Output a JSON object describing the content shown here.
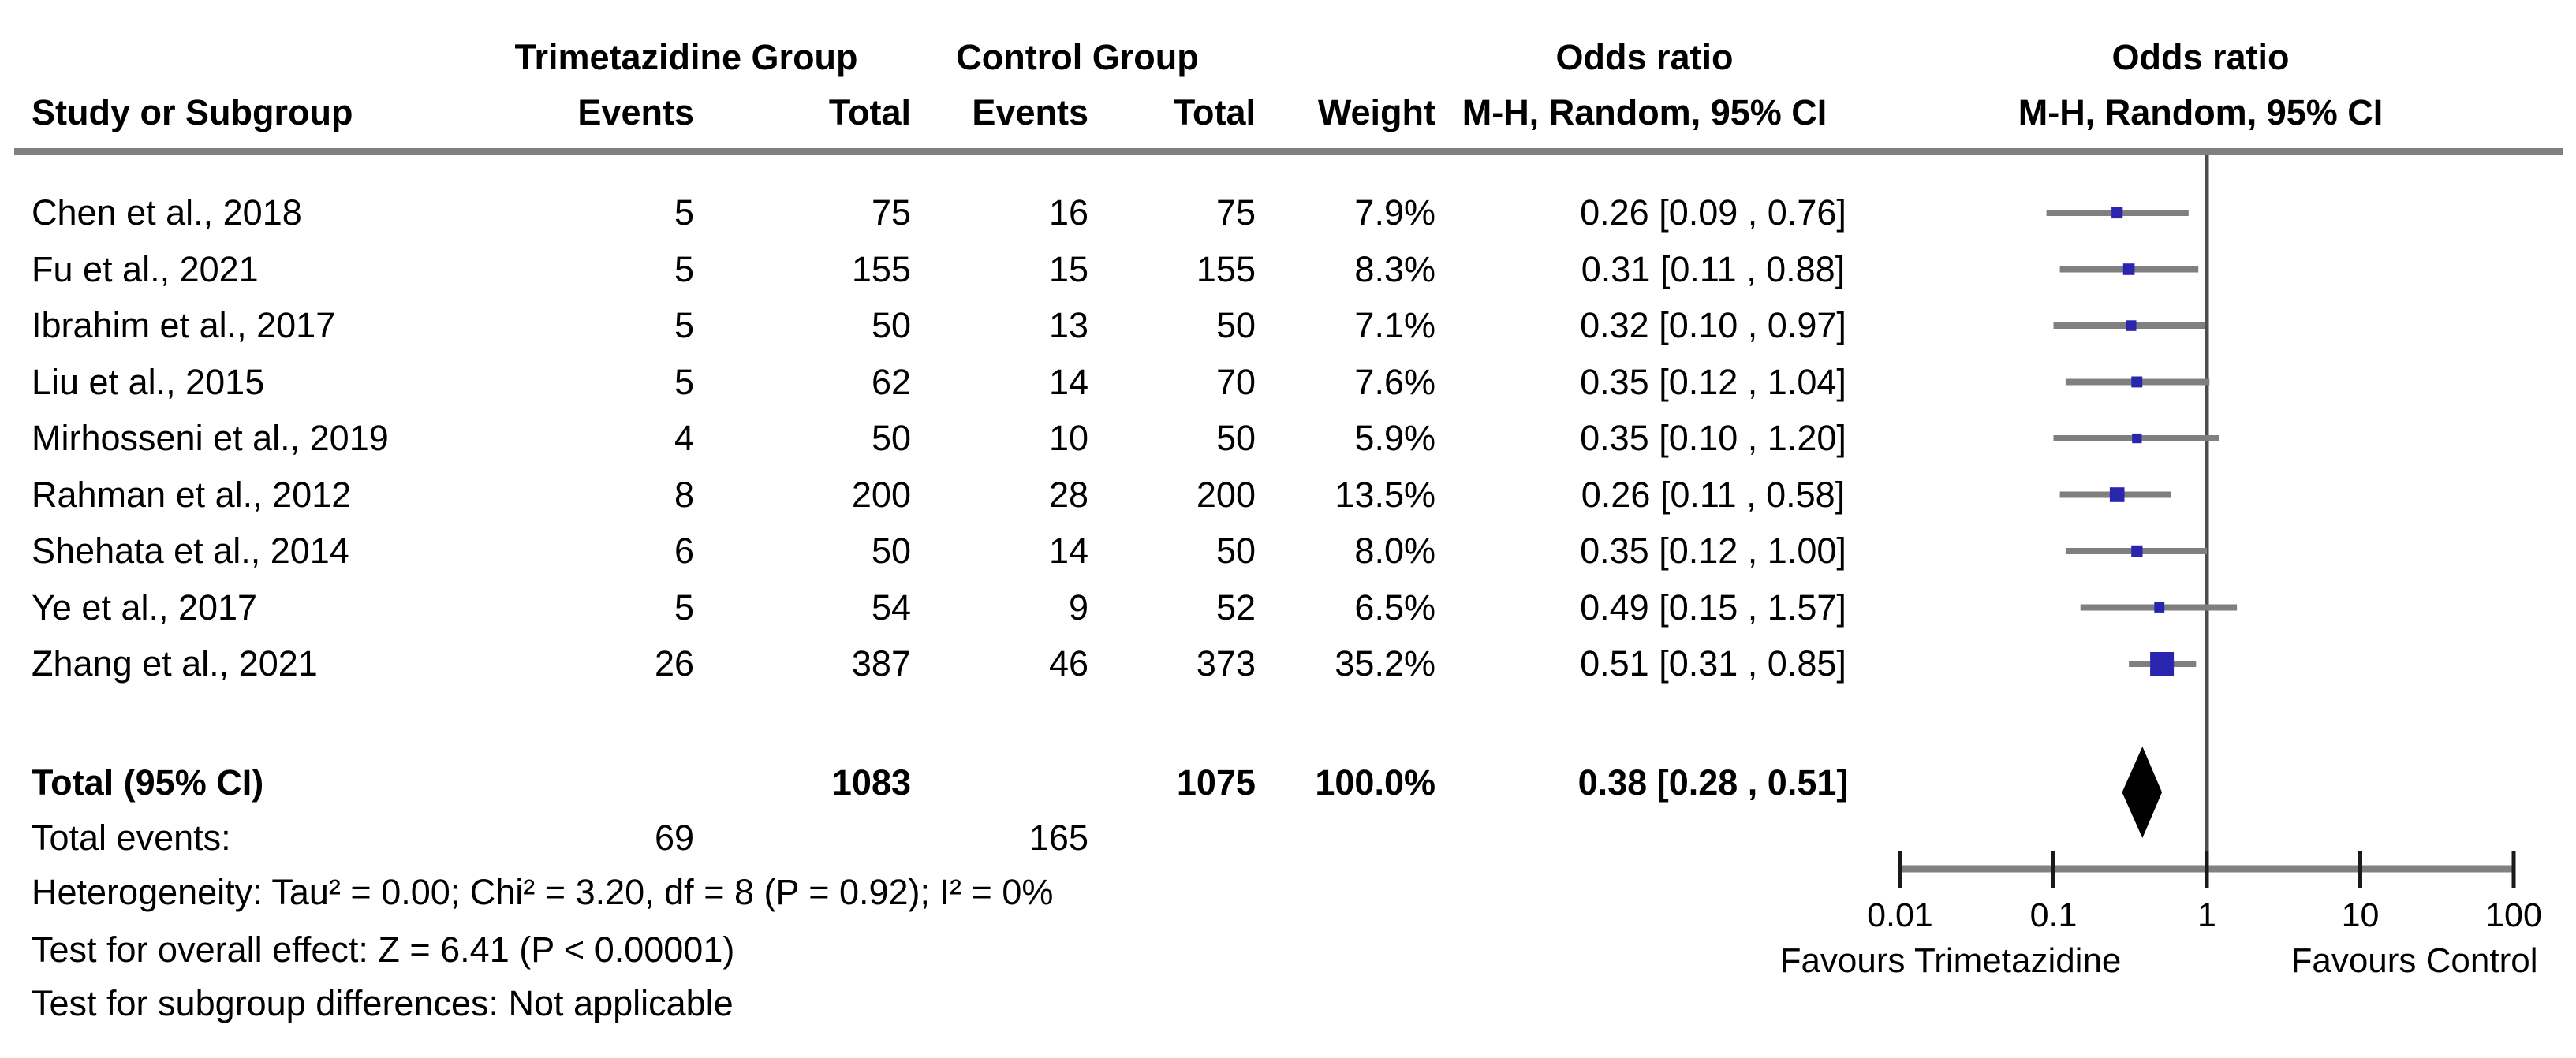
{
  "header": {
    "study_col": "Study or Subgroup",
    "group1": "Trimetazidine Group",
    "group2": "Control Group",
    "events": "Events",
    "total": "Total",
    "weight": "Weight",
    "or_title": "Odds ratio",
    "or_subtitle": "M-H, Random, 95% CI",
    "plot_title": "Odds ratio",
    "plot_subtitle": "M-H, Random, 95% CI"
  },
  "chart_data": {
    "type": "forest",
    "effect_measure": "Odds ratio",
    "method": "M-H, Random, 95% CI",
    "x_scale": "log",
    "x_range": [
      0.01,
      100
    ],
    "x_ticks": [
      "0.01",
      "0.1",
      "1",
      "10",
      "100"
    ],
    "null_value": 1,
    "favours_left": "Favours Trimetazidine",
    "favours_right": "Favours Control",
    "studies": [
      {
        "label": "Chen et al., 2018",
        "tmz_events": 5,
        "tmz_total": 75,
        "ctl_events": 16,
        "ctl_total": 75,
        "weight_pct": 7.9,
        "weight_label": "7.9%",
        "or": 0.26,
        "ci_low": 0.09,
        "ci_high": 0.76,
        "or_label": "0.26 [0.09 , 0.76]"
      },
      {
        "label": "Fu et al., 2021",
        "tmz_events": 5,
        "tmz_total": 155,
        "ctl_events": 15,
        "ctl_total": 155,
        "weight_pct": 8.3,
        "weight_label": "8.3%",
        "or": 0.31,
        "ci_low": 0.11,
        "ci_high": 0.88,
        "or_label": "0.31 [0.11 , 0.88]"
      },
      {
        "label": "Ibrahim et al., 2017",
        "tmz_events": 5,
        "tmz_total": 50,
        "ctl_events": 13,
        "ctl_total": 50,
        "weight_pct": 7.1,
        "weight_label": "7.1%",
        "or": 0.32,
        "ci_low": 0.1,
        "ci_high": 0.97,
        "or_label": "0.32 [0.10 , 0.97]"
      },
      {
        "label": "Liu et al., 2015",
        "tmz_events": 5,
        "tmz_total": 62,
        "ctl_events": 14,
        "ctl_total": 70,
        "weight_pct": 7.6,
        "weight_label": "7.6%",
        "or": 0.35,
        "ci_low": 0.12,
        "ci_high": 1.04,
        "or_label": "0.35 [0.12 , 1.04]"
      },
      {
        "label": "Mirhosseni et al., 2019",
        "tmz_events": 4,
        "tmz_total": 50,
        "ctl_events": 10,
        "ctl_total": 50,
        "weight_pct": 5.9,
        "weight_label": "5.9%",
        "or": 0.35,
        "ci_low": 0.1,
        "ci_high": 1.2,
        "or_label": "0.35 [0.10 , 1.20]"
      },
      {
        "label": "Rahman et al., 2012",
        "tmz_events": 8,
        "tmz_total": 200,
        "ctl_events": 28,
        "ctl_total": 200,
        "weight_pct": 13.5,
        "weight_label": "13.5%",
        "or": 0.26,
        "ci_low": 0.11,
        "ci_high": 0.58,
        "or_label": "0.26 [0.11 , 0.58]"
      },
      {
        "label": "Shehata et al., 2014",
        "tmz_events": 6,
        "tmz_total": 50,
        "ctl_events": 14,
        "ctl_total": 50,
        "weight_pct": 8.0,
        "weight_label": "8.0%",
        "or": 0.35,
        "ci_low": 0.12,
        "ci_high": 1.0,
        "or_label": "0.35 [0.12 , 1.00]"
      },
      {
        "label": "Ye et al., 2017",
        "tmz_events": 5,
        "tmz_total": 54,
        "ctl_events": 9,
        "ctl_total": 52,
        "weight_pct": 6.5,
        "weight_label": "6.5%",
        "or": 0.49,
        "ci_low": 0.15,
        "ci_high": 1.57,
        "or_label": "0.49 [0.15 , 1.57]"
      },
      {
        "label": "Zhang et al., 2021",
        "tmz_events": 26,
        "tmz_total": 387,
        "ctl_events": 46,
        "ctl_total": 373,
        "weight_pct": 35.2,
        "weight_label": "35.2%",
        "or": 0.51,
        "ci_low": 0.31,
        "ci_high": 0.85,
        "or_label": "0.51 [0.31 , 0.85]"
      }
    ],
    "total": {
      "label": "Total (95% CI)",
      "tmz_total": 1083,
      "ctl_total": 1075,
      "weight_label": "100.0%",
      "or": 0.38,
      "ci_low": 0.28,
      "ci_high": 0.51,
      "or_label": "0.38 [0.28 , 0.51]"
    },
    "total_events": {
      "label": "Total events:",
      "tmz_events": 69,
      "ctl_events": 165
    },
    "footnotes": {
      "heterogeneity": "Heterogeneity: Tau² = 0.00; Chi² = 3.20, df = 8 (P = 0.92); I² = 0%",
      "overall_effect": "Test for overall effect: Z = 6.41 (P < 0.00001)",
      "subgroup": "Test for subgroup differences: Not applicable"
    }
  },
  "colors": {
    "square": "#2a25ae",
    "ci_line": "#7f7f7f",
    "axis": "#808080",
    "tick": "#1a1a1a",
    "null_line": "#4d4d4d",
    "diamond": "#000000",
    "separator": "#808080"
  }
}
